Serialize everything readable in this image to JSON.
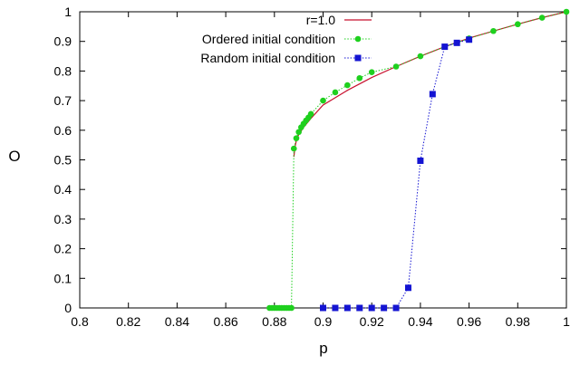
{
  "chart_data": {
    "type": "scatter",
    "xlabel": "p",
    "ylabel": "O",
    "xlim": [
      0.8,
      1.0
    ],
    "ylim": [
      0,
      1
    ],
    "x_ticks": [
      "0.8",
      "0.82",
      "0.84",
      "0.86",
      "0.88",
      "0.9",
      "0.92",
      "0.94",
      "0.96",
      "0.98",
      "1"
    ],
    "y_ticks": [
      "0",
      "0.1",
      "0.2",
      "0.3",
      "0.4",
      "0.5",
      "0.6",
      "0.7",
      "0.8",
      "0.9",
      "1"
    ],
    "legend_position": "top-right",
    "grid": false,
    "series": [
      {
        "name": "r=1.0",
        "style": "line",
        "color": "#c8102e",
        "x": [
          0.888,
          0.8885,
          0.889,
          0.89,
          0.892,
          0.895,
          0.9,
          0.91,
          0.92,
          0.93,
          0.94,
          0.95,
          0.96,
          0.97,
          0.98,
          0.99,
          1.0
        ],
        "y": [
          0.51,
          0.545,
          0.565,
          0.585,
          0.61,
          0.64,
          0.685,
          0.735,
          0.778,
          0.815,
          0.85,
          0.882,
          0.911,
          0.935,
          0.958,
          0.98,
          1.0
        ]
      },
      {
        "name": "Ordered initial condition",
        "style": "points-dotted-line",
        "color": "#1ed01e",
        "marker": "circle",
        "x": [
          0.878,
          0.879,
          0.88,
          0.881,
          0.882,
          0.883,
          0.884,
          0.885,
          0.886,
          0.887,
          0.888,
          0.889,
          0.89,
          0.891,
          0.892,
          0.893,
          0.894,
          0.895,
          0.9,
          0.905,
          0.91,
          0.915,
          0.92,
          0.93,
          0.94,
          0.95,
          0.96,
          0.97,
          0.98,
          0.99,
          1.0
        ],
        "y": [
          0,
          0,
          0,
          0,
          0,
          0,
          0,
          0,
          0,
          0,
          0.538,
          0.573,
          0.594,
          0.61,
          0.622,
          0.633,
          0.643,
          0.655,
          0.7,
          0.728,
          0.752,
          0.776,
          0.796,
          0.815,
          0.85,
          0.882,
          0.91,
          0.935,
          0.958,
          0.98,
          1.0
        ]
      },
      {
        "name": "Random initial condition",
        "style": "points-dotted-line",
        "color": "#1414d2",
        "marker": "square",
        "x": [
          0.9,
          0.905,
          0.91,
          0.915,
          0.92,
          0.925,
          0.93,
          0.935,
          0.94,
          0.945,
          0.95,
          0.955,
          0.96
        ],
        "y": [
          0,
          0,
          0,
          0,
          0,
          0,
          0,
          0.068,
          0.497,
          0.722,
          0.882,
          0.895,
          0.906
        ]
      }
    ]
  }
}
